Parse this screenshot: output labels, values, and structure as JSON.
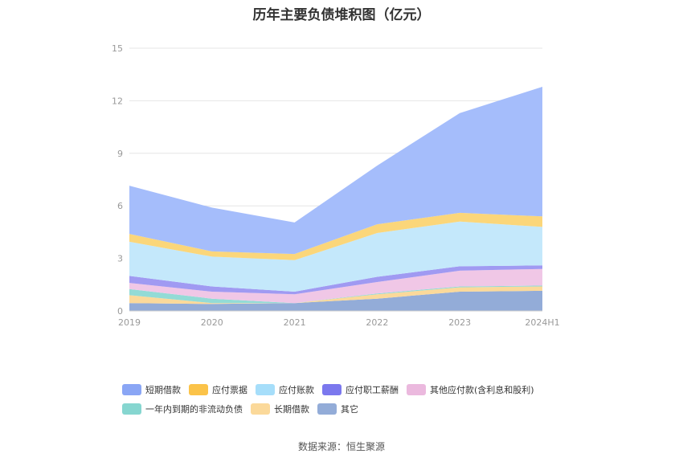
{
  "chart_data": {
    "type": "area",
    "stacked": true,
    "title": "历年主要负债堆积图（亿元）",
    "categories": [
      "2019",
      "2020",
      "2021",
      "2022",
      "2023",
      "2024H1"
    ],
    "ylim": [
      0,
      15
    ],
    "yticks": [
      "0",
      "3",
      "6",
      "9",
      "12",
      "15"
    ],
    "grid": true,
    "legend_position": "bottom",
    "series": [
      {
        "name": "其它",
        "color": "#93acd8",
        "values": [
          0.45,
          0.4,
          0.45,
          0.7,
          1.1,
          1.15
        ]
      },
      {
        "name": "长期借款",
        "color": "#fbd99a",
        "values": [
          0.45,
          0.05,
          0.0,
          0.25,
          0.25,
          0.25
        ]
      },
      {
        "name": "一年内到期的非流动负债",
        "color": "#93dbd6",
        "values": [
          0.35,
          0.25,
          0.0,
          0.05,
          0.05,
          0.05
        ]
      },
      {
        "name": "其他应付款(含利息和股利)",
        "color": "#f0c7e6",
        "values": [
          0.35,
          0.4,
          0.5,
          0.65,
          0.9,
          0.95
        ]
      },
      {
        "name": "应付职工薪酬",
        "color": "#a09af2",
        "values": [
          0.4,
          0.3,
          0.15,
          0.3,
          0.25,
          0.2
        ]
      },
      {
        "name": "应付账款",
        "color": "#c4e8fb",
        "values": [
          1.95,
          1.7,
          1.8,
          2.5,
          2.55,
          2.2
        ]
      },
      {
        "name": "应付票据",
        "color": "#fbd67a",
        "values": [
          0.45,
          0.3,
          0.35,
          0.5,
          0.5,
          0.6
        ]
      },
      {
        "name": "短期借款",
        "color": "#a5bdfb",
        "values": [
          2.75,
          2.5,
          1.8,
          3.35,
          5.7,
          7.4
        ]
      }
    ],
    "legend": [
      {
        "name": "短期借款",
        "color": "#8aa6f5"
      },
      {
        "name": "应付票据",
        "color": "#fbc349"
      },
      {
        "name": "应付账款",
        "color": "#a6defa"
      },
      {
        "name": "应付职工薪酬",
        "color": "#7b78ee"
      },
      {
        "name": "其他应付款(含利息和股利)",
        "color": "#ebb9de"
      },
      {
        "name": "一年内到期的非流动负债",
        "color": "#86d6d0"
      },
      {
        "name": "长期借款",
        "color": "#fbd99a"
      },
      {
        "name": "其它",
        "color": "#93acd8"
      }
    ]
  },
  "source": "数据来源：恒生聚源"
}
